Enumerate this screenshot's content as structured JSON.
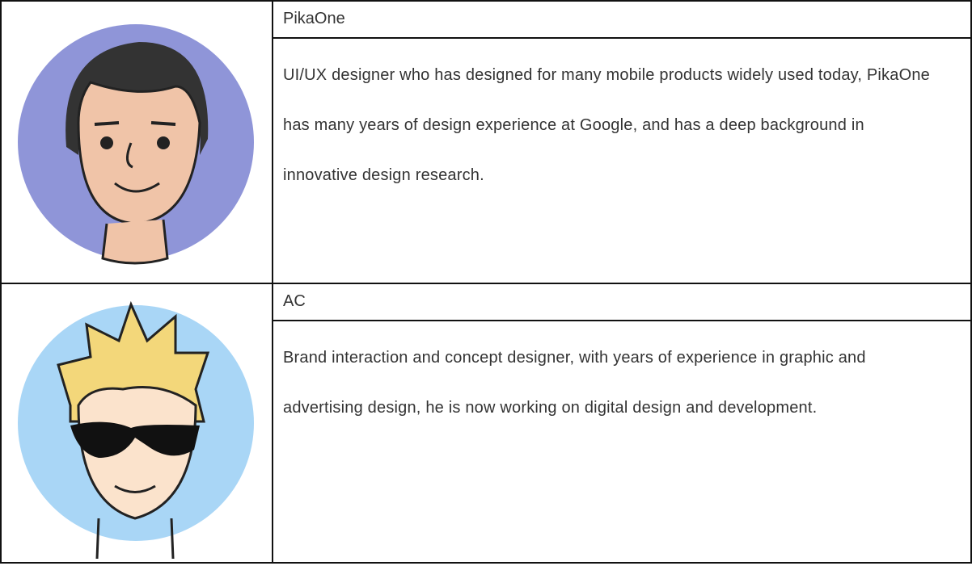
{
  "people": [
    {
      "name": "PikaOne",
      "bio": "UI/UX designer who has designed for many mobile products widely used today, PikaOne has many years of design experience at Google, and has a deep background in innovative design research."
    },
    {
      "name": "AC",
      "bio": "Brand interaction and concept designer, with years of experience in graphic and advertising design, he is now working on digital design and development."
    }
  ]
}
